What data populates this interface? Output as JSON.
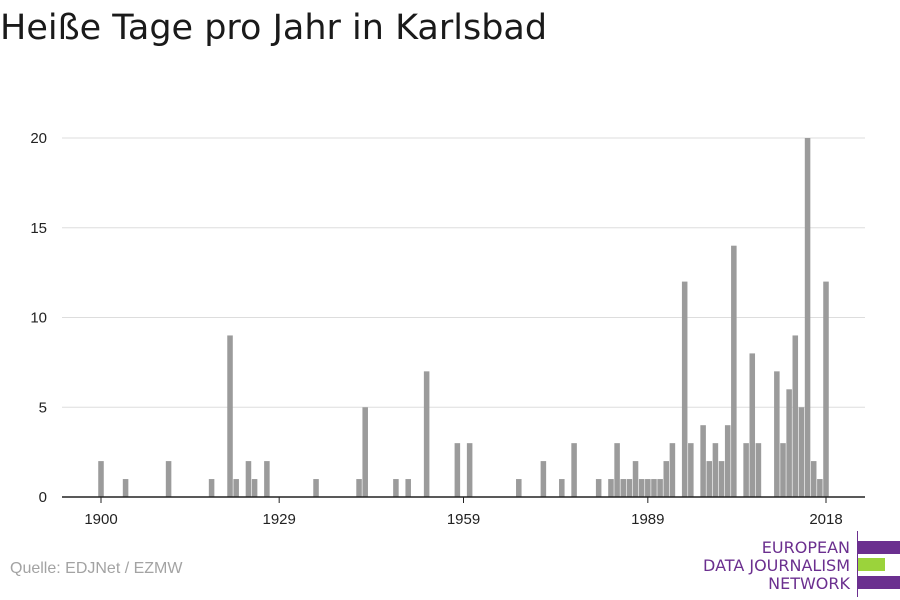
{
  "title": "Heiße Tage pro Jahr in Karlsbad",
  "source": "Quelle: EDJNet / EZMW",
  "logo": {
    "lines": [
      "EUROPEAN",
      "DATA JOURNALISM",
      "NETWORK"
    ],
    "colors": {
      "purple": "#6b2f8f",
      "green": "#9bd33b"
    }
  },
  "colors": {
    "bar": "#9b9b9b",
    "grid": "#dddddd",
    "axis": "#222222",
    "text": "#222222"
  },
  "chart_data": {
    "type": "bar",
    "title": "Heiße Tage pro Jahr in Karlsbad",
    "xlabel": "",
    "ylabel": "",
    "xlim": [
      1900,
      2018
    ],
    "ylim": [
      0,
      20
    ],
    "xticks": [
      1900,
      1929,
      1959,
      1989,
      2018
    ],
    "yticks": [
      0,
      5,
      10,
      15,
      20
    ],
    "grid": true,
    "points": [
      {
        "x": 1900,
        "y": 2
      },
      {
        "x": 1904,
        "y": 1
      },
      {
        "x": 1911,
        "y": 2
      },
      {
        "x": 1918,
        "y": 1
      },
      {
        "x": 1921,
        "y": 9
      },
      {
        "x": 1922,
        "y": 1
      },
      {
        "x": 1924,
        "y": 2
      },
      {
        "x": 1925,
        "y": 1
      },
      {
        "x": 1927,
        "y": 2
      },
      {
        "x": 1935,
        "y": 1
      },
      {
        "x": 1942,
        "y": 1
      },
      {
        "x": 1943,
        "y": 5
      },
      {
        "x": 1948,
        "y": 1
      },
      {
        "x": 1950,
        "y": 1
      },
      {
        "x": 1953,
        "y": 7
      },
      {
        "x": 1958,
        "y": 3
      },
      {
        "x": 1960,
        "y": 3
      },
      {
        "x": 1968,
        "y": 1
      },
      {
        "x": 1972,
        "y": 2
      },
      {
        "x": 1975,
        "y": 1
      },
      {
        "x": 1977,
        "y": 3
      },
      {
        "x": 1981,
        "y": 1
      },
      {
        "x": 1983,
        "y": 1
      },
      {
        "x": 1984,
        "y": 3
      },
      {
        "x": 1985,
        "y": 1
      },
      {
        "x": 1986,
        "y": 1
      },
      {
        "x": 1987,
        "y": 2
      },
      {
        "x": 1988,
        "y": 1
      },
      {
        "x": 1989,
        "y": 1
      },
      {
        "x": 1990,
        "y": 1
      },
      {
        "x": 1991,
        "y": 1
      },
      {
        "x": 1992,
        "y": 2
      },
      {
        "x": 1993,
        "y": 3
      },
      {
        "x": 1995,
        "y": 12
      },
      {
        "x": 1996,
        "y": 3
      },
      {
        "x": 1998,
        "y": 4
      },
      {
        "x": 1999,
        "y": 2
      },
      {
        "x": 2000,
        "y": 3
      },
      {
        "x": 2001,
        "y": 2
      },
      {
        "x": 2002,
        "y": 4
      },
      {
        "x": 2003,
        "y": 14
      },
      {
        "x": 2005,
        "y": 3
      },
      {
        "x": 2006,
        "y": 8
      },
      {
        "x": 2007,
        "y": 3
      },
      {
        "x": 2010,
        "y": 7
      },
      {
        "x": 2011,
        "y": 3
      },
      {
        "x": 2012,
        "y": 6
      },
      {
        "x": 2013,
        "y": 9
      },
      {
        "x": 2014,
        "y": 5
      },
      {
        "x": 2015,
        "y": 20
      },
      {
        "x": 2016,
        "y": 2
      },
      {
        "x": 2017,
        "y": 1
      },
      {
        "x": 2018,
        "y": 12
      }
    ]
  }
}
